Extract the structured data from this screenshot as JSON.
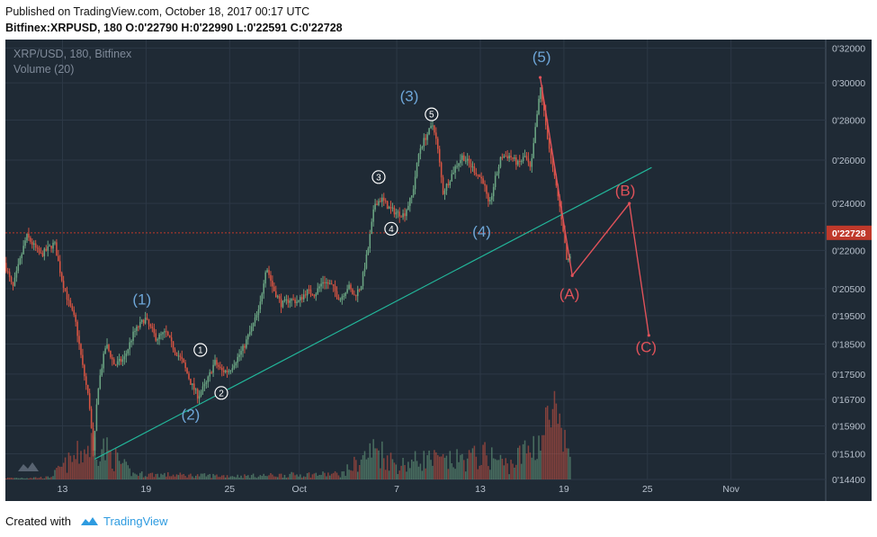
{
  "header": {
    "published": "Published on TradingView.com, October 18, 2017 00:17 UTC",
    "symbol": "Bitfinex:XRPUSD, 180",
    "ohlc": "O:0'22790 H:0'22990 L:0'22591 C:0'22728"
  },
  "legend": {
    "symbol": "XRP/USD, 180, Bitfinex",
    "volume": "Volume (20)"
  },
  "footer": {
    "created_with": "Created with",
    "brand": "TradingView"
  },
  "colors": {
    "background": "#1f2a35",
    "grid": "#2c3846",
    "up": "#6ba583",
    "down": "#d75442",
    "trendline": "#22b69a",
    "wave_blue": "#6ea6d8",
    "wave_red": "#e0525a",
    "last_price_line": "#c0392b"
  },
  "chart_data": {
    "type": "candlestick",
    "y_scale": "log",
    "ylim": [
      0.144,
      0.325
    ],
    "y_ticks": [
      "0'32000",
      "0'30000",
      "0'28000",
      "0'26000",
      "0'24000",
      "0'22000",
      "0'20500",
      "0'19500",
      "0'18500",
      "0'17500",
      "0'16700",
      "0'15900",
      "0'15100",
      "0'14400"
    ],
    "y_tick_values": [
      0.32,
      0.3,
      0.28,
      0.26,
      0.24,
      0.22,
      0.205,
      0.195,
      0.185,
      0.175,
      0.167,
      0.159,
      0.151,
      0.144
    ],
    "x_ticks": [
      {
        "label": "13",
        "day": 13
      },
      {
        "label": "19",
        "day": 19
      },
      {
        "label": "25",
        "day": 25
      },
      {
        "label": "Oct",
        "day": 30
      },
      {
        "label": "7",
        "day": 37
      },
      {
        "label": "13",
        "day": 43
      },
      {
        "label": "19",
        "day": 49
      },
      {
        "label": "25",
        "day": 55
      },
      {
        "label": "Nov",
        "day": 61
      }
    ],
    "x_range_days": [
      8.9,
      67.8
    ],
    "last_price": {
      "label": "0'22728",
      "value": 0.22728
    },
    "price_path": [
      [
        8.9,
        0.215
      ],
      [
        9.5,
        0.205
      ],
      [
        10.5,
        0.226
      ],
      [
        11.5,
        0.218
      ],
      [
        12.5,
        0.223
      ],
      [
        13,
        0.209
      ],
      [
        13.5,
        0.2
      ],
      [
        14,
        0.193
      ],
      [
        14.5,
        0.178
      ],
      [
        15,
        0.166
      ],
      [
        15.3,
        0.15
      ],
      [
        15.6,
        0.17
      ],
      [
        16.2,
        0.185
      ],
      [
        16.8,
        0.178
      ],
      [
        17.5,
        0.18
      ],
      [
        18.2,
        0.189
      ],
      [
        19,
        0.194
      ],
      [
        19.8,
        0.187
      ],
      [
        20.5,
        0.189
      ],
      [
        21,
        0.184
      ],
      [
        21.7,
        0.179
      ],
      [
        22.3,
        0.172
      ],
      [
        22.8,
        0.168
      ],
      [
        23.4,
        0.172
      ],
      [
        24,
        0.179
      ],
      [
        24.5,
        0.176
      ],
      [
        25,
        0.176
      ],
      [
        25.6,
        0.18
      ],
      [
        26.1,
        0.184
      ],
      [
        26.6,
        0.19
      ],
      [
        27.2,
        0.197
      ],
      [
        27.7,
        0.214
      ],
      [
        28.2,
        0.205
      ],
      [
        28.8,
        0.199
      ],
      [
        29.4,
        0.201
      ],
      [
        30,
        0.2
      ],
      [
        30.6,
        0.204
      ],
      [
        31.2,
        0.203
      ],
      [
        31.8,
        0.208
      ],
      [
        32.4,
        0.206
      ],
      [
        33,
        0.201
      ],
      [
        33.6,
        0.206
      ],
      [
        34,
        0.202
      ],
      [
        34.5,
        0.206
      ],
      [
        35,
        0.22
      ],
      [
        35.5,
        0.24
      ],
      [
        36,
        0.242
      ],
      [
        36.5,
        0.238
      ],
      [
        37,
        0.236
      ],
      [
        37.6,
        0.235
      ],
      [
        38.2,
        0.244
      ],
      [
        38.7,
        0.265
      ],
      [
        39.2,
        0.272
      ],
      [
        39.7,
        0.278
      ],
      [
        40,
        0.266
      ],
      [
        40.4,
        0.245
      ],
      [
        40.8,
        0.25
      ],
      [
        41.3,
        0.257
      ],
      [
        41.8,
        0.262
      ],
      [
        42.3,
        0.258
      ],
      [
        42.8,
        0.254
      ],
      [
        43.3,
        0.25
      ],
      [
        43.7,
        0.238
      ],
      [
        44.1,
        0.25
      ],
      [
        44.6,
        0.262
      ],
      [
        45.2,
        0.262
      ],
      [
        45.8,
        0.258
      ],
      [
        46.3,
        0.262
      ],
      [
        46.7,
        0.255
      ],
      [
        47.1,
        0.28
      ],
      [
        47.4,
        0.297
      ],
      [
        47.8,
        0.276
      ],
      [
        48.2,
        0.258
      ],
      [
        48.6,
        0.245
      ],
      [
        49,
        0.23
      ],
      [
        49.3,
        0.215
      ],
      [
        49.5,
        0.218
      ]
    ],
    "volume_path": [
      [
        9,
        0.02
      ],
      [
        12,
        0.03
      ],
      [
        15.3,
        0.55
      ],
      [
        18,
        0.08
      ],
      [
        22,
        0.06
      ],
      [
        26,
        0.05
      ],
      [
        30,
        0.07
      ],
      [
        33,
        0.08
      ],
      [
        35.5,
        0.45
      ],
      [
        37,
        0.2
      ],
      [
        39,
        0.3
      ],
      [
        40.5,
        0.25
      ],
      [
        43.5,
        0.35
      ],
      [
        45,
        0.2
      ],
      [
        47.3,
        0.6
      ],
      [
        48.2,
        0.95
      ],
      [
        48.8,
        0.5
      ]
    ],
    "trendline": {
      "from": [
        15.3,
        0.1495
      ],
      "to": [
        55.3,
        0.2565
      ]
    },
    "wave_labels": [
      {
        "text": "(1)",
        "day": 18.7,
        "price": 0.201,
        "color": "blue"
      },
      {
        "text": "(2)",
        "day": 22.2,
        "price": 0.1625,
        "color": "blue"
      },
      {
        "text": "(3)",
        "day": 37.9,
        "price": 0.293,
        "color": "blue"
      },
      {
        "text": "(4)",
        "day": 43.1,
        "price": 0.228,
        "color": "blue"
      },
      {
        "text": "(5)",
        "day": 47.4,
        "price": 0.315,
        "color": "blue"
      },
      {
        "text": "(A)",
        "day": 49.4,
        "price": 0.203,
        "color": "red"
      },
      {
        "text": "(B)",
        "day": 53.4,
        "price": 0.246,
        "color": "red"
      },
      {
        "text": "(C)",
        "day": 54.9,
        "price": 0.184,
        "color": "red"
      }
    ],
    "sub_labels": [
      {
        "text": "1",
        "day": 22.9,
        "price": 0.183
      },
      {
        "text": "2",
        "day": 24.4,
        "price": 0.169
      },
      {
        "text": "3",
        "day": 35.7,
        "price": 0.252
      },
      {
        "text": "4",
        "day": 36.6,
        "price": 0.229
      },
      {
        "text": "5",
        "day": 39.5,
        "price": 0.283
      }
    ],
    "projection": [
      [
        47.3,
        0.303
      ],
      [
        49.6,
        0.21
      ],
      [
        53.7,
        0.24
      ],
      [
        55.1,
        0.188
      ]
    ]
  }
}
